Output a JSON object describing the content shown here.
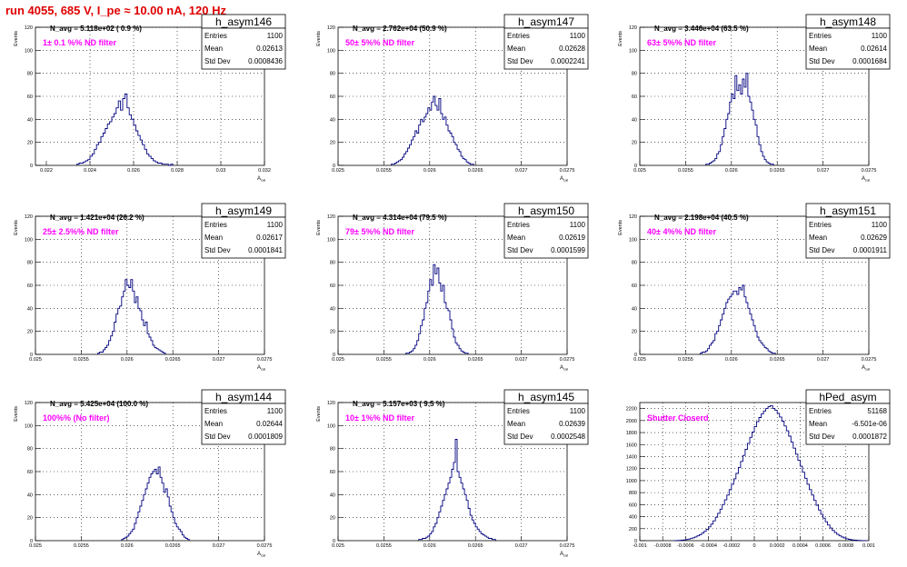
{
  "header": {
    "title_prefix": "run 4055,   685 V, I_pe",
    "title_approx": "≈",
    "title_suffix": "10.00 nA, 120 Hz",
    "title_color": "#e00000"
  },
  "colors": {
    "hist": "#00007f",
    "label": "#ff00ff",
    "grid": "#000000"
  },
  "chart_data": [
    {
      "type": "histogram",
      "name": "h_asym146",
      "nav": "N_avg = 5.118e+02 ( 0.9 %)",
      "filter": "1± 0.1 %% ND filter",
      "stats": {
        "entries": "1100",
        "mean": "0.02613",
        "std_dev": "0.0008436"
      },
      "xlabel": "A",
      "xlabel_sub": "cal",
      "ylabel": "Events",
      "xlim": [
        0.0215,
        0.032
      ],
      "ylim": [
        0,
        120
      ],
      "xticks": [
        0.022,
        0.024,
        0.026,
        0.028,
        0.03,
        0.032
      ],
      "xtick_labels": [
        "0.022",
        "0.024",
        "0.026",
        "0.028",
        "0.03",
        "0.032"
      ],
      "yticks": [
        0,
        20,
        40,
        60,
        80,
        100,
        120
      ],
      "bin_width": 0.0001,
      "bin_start": 0.0234,
      "counts": [
        1,
        2,
        2,
        3,
        4,
        5,
        8,
        10,
        14,
        18,
        20,
        25,
        28,
        32,
        36,
        38,
        42,
        45,
        50,
        56,
        48,
        58,
        62,
        50,
        44,
        40,
        35,
        30,
        26,
        22,
        18,
        14,
        10,
        8,
        6,
        4,
        3,
        2,
        2,
        1,
        1,
        1,
        0,
        1
      ]
    },
    {
      "type": "histogram",
      "name": "h_asym147",
      "nav": "N_avg = 2.762e+04 (50.9 %)",
      "filter": "50± 5%% ND filter",
      "stats": {
        "entries": "1100",
        "mean": "0.02628",
        "std_dev": "0.0002241"
      },
      "xlabel": "A",
      "xlabel_sub": "cal",
      "ylabel": "Events",
      "xlim": [
        0.025,
        0.0275
      ],
      "ylim": [
        0,
        120
      ],
      "xticks": [
        0.025,
        0.0255,
        0.026,
        0.0265,
        0.027,
        0.0275
      ],
      "xtick_labels": [
        "0.025",
        "0.0255",
        "0.026",
        "0.0265",
        "0.027",
        "0.0275"
      ],
      "yticks": [
        0,
        20,
        40,
        60,
        80,
        100,
        120
      ],
      "bin_width": 2e-05,
      "bin_start": 0.02558,
      "counts": [
        1,
        1,
        2,
        3,
        4,
        5,
        7,
        10,
        12,
        15,
        18,
        22,
        25,
        30,
        28,
        35,
        40,
        38,
        42,
        45,
        50,
        48,
        55,
        60,
        52,
        48,
        58,
        45,
        40,
        42,
        35,
        30,
        28,
        25,
        20,
        18,
        14,
        12,
        8,
        6,
        5,
        3,
        2,
        1,
        1
      ]
    },
    {
      "type": "histogram",
      "name": "h_asym148",
      "nav": "N_avg = 3.446e+04 (63.5 %)",
      "filter": "63± 5%% ND filter",
      "stats": {
        "entries": "1100",
        "mean": "0.02614",
        "std_dev": "0.0001684"
      },
      "xlabel": "A",
      "xlabel_sub": "cal",
      "ylabel": "Events",
      "xlim": [
        0.025,
        0.0275
      ],
      "ylim": [
        0,
        120
      ],
      "xticks": [
        0.025,
        0.0255,
        0.026,
        0.0265,
        0.027,
        0.0275
      ],
      "xtick_labels": [
        "0.025",
        "0.0255",
        "0.026",
        "0.0265",
        "0.027",
        "0.0275"
      ],
      "yticks": [
        0,
        20,
        40,
        60,
        80,
        100,
        120
      ],
      "bin_width": 2e-05,
      "bin_start": 0.02572,
      "counts": [
        1,
        1,
        2,
        3,
        4,
        6,
        10,
        12,
        18,
        25,
        32,
        40,
        45,
        55,
        62,
        58,
        78,
        65,
        70,
        62,
        75,
        68,
        80,
        60,
        55,
        48,
        40,
        35,
        25,
        18,
        12,
        8,
        5,
        3,
        2,
        1,
        1
      ]
    },
    {
      "type": "histogram",
      "name": "h_asym149",
      "nav": "N_avg = 1.421e+04 (26.2 %)",
      "filter": "25± 2.5%% ND filter",
      "stats": {
        "entries": "1100",
        "mean": "0.02617",
        "std_dev": "0.0001841"
      },
      "xlabel": "A",
      "xlabel_sub": "cal",
      "ylabel": "Events",
      "xlim": [
        0.025,
        0.0275
      ],
      "ylim": [
        0,
        120
      ],
      "xticks": [
        0.025,
        0.0255,
        0.026,
        0.0265,
        0.027,
        0.0275
      ],
      "xtick_labels": [
        "0.025",
        "0.0255",
        "0.026",
        "0.0265",
        "0.027",
        "0.0275"
      ],
      "yticks": [
        0,
        20,
        40,
        60,
        80,
        100,
        120
      ],
      "bin_width": 2e-05,
      "bin_start": 0.02568,
      "counts": [
        1,
        2,
        2,
        4,
        6,
        8,
        12,
        16,
        20,
        28,
        35,
        40,
        42,
        50,
        55,
        65,
        60,
        58,
        65,
        55,
        45,
        50,
        40,
        38,
        30,
        25,
        28,
        18,
        15,
        12,
        8,
        6,
        5,
        4,
        3,
        2,
        1
      ]
    },
    {
      "type": "histogram",
      "name": "h_asym150",
      "nav": "N_avg = 4.314e+04 (79.5 %)",
      "filter": "79± 5%% ND filter",
      "stats": {
        "entries": "1100",
        "mean": "0.02619",
        "std_dev": "0.0001599"
      },
      "xlabel": "A",
      "xlabel_sub": "cal",
      "ylabel": "Events",
      "xlim": [
        0.025,
        0.0275
      ],
      "ylim": [
        0,
        120
      ],
      "xticks": [
        0.025,
        0.0255,
        0.026,
        0.0265,
        0.027,
        0.0275
      ],
      "xtick_labels": [
        "0.025",
        "0.0255",
        "0.026",
        "0.0265",
        "0.027",
        "0.0275"
      ],
      "yticks": [
        0,
        20,
        40,
        60,
        80,
        100,
        120
      ],
      "bin_width": 2e-05,
      "bin_start": 0.02574,
      "counts": [
        1,
        1,
        2,
        3,
        5,
        8,
        12,
        18,
        25,
        30,
        40,
        45,
        55,
        65,
        60,
        78,
        70,
        75,
        62,
        55,
        60,
        45,
        40,
        38,
        30,
        22,
        15,
        10,
        8,
        5,
        3,
        2,
        1,
        1
      ]
    },
    {
      "type": "histogram",
      "name": "h_asym151",
      "nav": "N_avg = 2.198e+04 (40.5 %)",
      "filter": "40± 4%% ND filter",
      "stats": {
        "entries": "1100",
        "mean": "0.02629",
        "std_dev": "0.0001911"
      },
      "xlabel": "A",
      "xlabel_sub": "cal",
      "ylabel": "Events",
      "xlim": [
        0.025,
        0.0275
      ],
      "ylim": [
        0,
        120
      ],
      "xticks": [
        0.025,
        0.0255,
        0.026,
        0.0265,
        0.027,
        0.0275
      ],
      "xtick_labels": [
        "0.025",
        "0.0255",
        "0.026",
        "0.0265",
        "0.027",
        "0.0275"
      ],
      "yticks": [
        0,
        20,
        40,
        60,
        80,
        100,
        120
      ],
      "bin_width": 2e-05,
      "bin_start": 0.02566,
      "counts": [
        1,
        2,
        2,
        3,
        5,
        8,
        10,
        12,
        18,
        20,
        25,
        30,
        35,
        40,
        45,
        48,
        50,
        52,
        55,
        55,
        52,
        58,
        56,
        60,
        50,
        45,
        40,
        35,
        30,
        25,
        20,
        15,
        12,
        10,
        8,
        6,
        5,
        3,
        2,
        1,
        1
      ]
    },
    {
      "type": "histogram",
      "name": "h_asym144",
      "nav": "N_avg = 5.425e+04 (100.0 %)",
      "filter": "100%% (No filter)",
      "stats": {
        "entries": "1100",
        "mean": "0.02644",
        "std_dev": "0.0001809"
      },
      "xlabel": "A",
      "xlabel_sub": "cal",
      "ylabel": "Events",
      "xlim": [
        0.025,
        0.0275
      ],
      "ylim": [
        0,
        120
      ],
      "xticks": [
        0.025,
        0.0255,
        0.026,
        0.0265,
        0.027,
        0.0275
      ],
      "xtick_labels": [
        "0.025",
        "0.0255",
        "0.026",
        "0.0265",
        "0.027",
        "0.0275"
      ],
      "yticks": [
        0,
        20,
        40,
        60,
        80,
        100,
        120
      ],
      "bin_width": 2e-05,
      "bin_start": 0.02594,
      "counts": [
        1,
        2,
        3,
        4,
        6,
        8,
        10,
        15,
        20,
        25,
        30,
        35,
        40,
        45,
        50,
        55,
        58,
        60,
        62,
        58,
        64,
        55,
        50,
        42,
        45,
        38,
        30,
        25,
        20,
        15,
        12,
        10,
        8,
        5,
        3,
        2,
        1
      ]
    },
    {
      "type": "histogram",
      "name": "h_asym145",
      "nav": "N_avg = 5.157e+03 ( 9.5 %)",
      "filter": "10± 1%% ND filter",
      "stats": {
        "entries": "1100",
        "mean": "0.02639",
        "std_dev": "0.0002548"
      },
      "xlabel": "A",
      "xlabel_sub": "cal",
      "ylabel": "Events",
      "xlim": [
        0.025,
        0.0275
      ],
      "ylim": [
        0,
        120
      ],
      "xticks": [
        0.025,
        0.0255,
        0.026,
        0.0265,
        0.027,
        0.0275
      ],
      "xtick_labels": [
        "0.025",
        "0.0255",
        "0.026",
        "0.0265",
        "0.027",
        "0.0275"
      ],
      "yticks": [
        0,
        20,
        40,
        60,
        80,
        100,
        120
      ],
      "bin_width": 2e-05,
      "bin_start": 0.02588,
      "counts": [
        1,
        1,
        2,
        2,
        3,
        4,
        6,
        8,
        12,
        15,
        20,
        25,
        30,
        35,
        40,
        45,
        50,
        55,
        62,
        68,
        88,
        60,
        55,
        50,
        45,
        40,
        35,
        28,
        22,
        18,
        15,
        12,
        10,
        8,
        6,
        5,
        4,
        3,
        2,
        2,
        1,
        1
      ]
    },
    {
      "type": "histogram",
      "name": "hPed_asym",
      "nav": "",
      "filter": "Shutter Closerd",
      "stats": {
        "entries": "51168",
        "mean": "-6.501e-06",
        "std_dev": "0.0001872"
      },
      "xlabel": "",
      "xlabel_sub": "",
      "ylabel": "",
      "xlim": [
        -0.001,
        0.001
      ],
      "ylim": [
        0,
        2300
      ],
      "xticks": [
        -0.001,
        -0.0008,
        -0.0006,
        -0.0004,
        -0.0002,
        0,
        0.0002,
        0.0004,
        0.0006,
        0.0008,
        0.001
      ],
      "xtick_labels": [
        "-0.001",
        "-0.0008",
        "-0.0006",
        "-0.0004",
        "-0.0002",
        "0",
        "0.0002",
        "0.0004",
        "0.0006",
        "0.0008",
        "0.001"
      ],
      "yticks": [
        0,
        200,
        400,
        600,
        800,
        1000,
        1200,
        1400,
        1600,
        1800,
        2000,
        2200
      ],
      "bin_width": 2e-05,
      "bin_start": -0.0007,
      "counts": [
        2,
        3,
        5,
        8,
        12,
        18,
        25,
        35,
        48,
        62,
        80,
        100,
        125,
        155,
        190,
        230,
        275,
        330,
        390,
        455,
        525,
        600,
        680,
        760,
        850,
        940,
        1030,
        1120,
        1220,
        1320,
        1420,
        1520,
        1620,
        1720,
        1810,
        1900,
        1980,
        2050,
        2110,
        2160,
        2200,
        2230,
        2250,
        2200,
        2170,
        2120,
        2060,
        1990,
        1910,
        1830,
        1740,
        1640,
        1540,
        1440,
        1340,
        1240,
        1140,
        1040,
        940,
        850,
        760,
        670,
        590,
        510,
        440,
        375,
        315,
        260,
        210,
        170,
        135,
        105,
        80,
        60,
        45,
        32,
        22,
        15,
        10,
        7,
        5,
        3,
        2,
        1
      ]
    }
  ]
}
